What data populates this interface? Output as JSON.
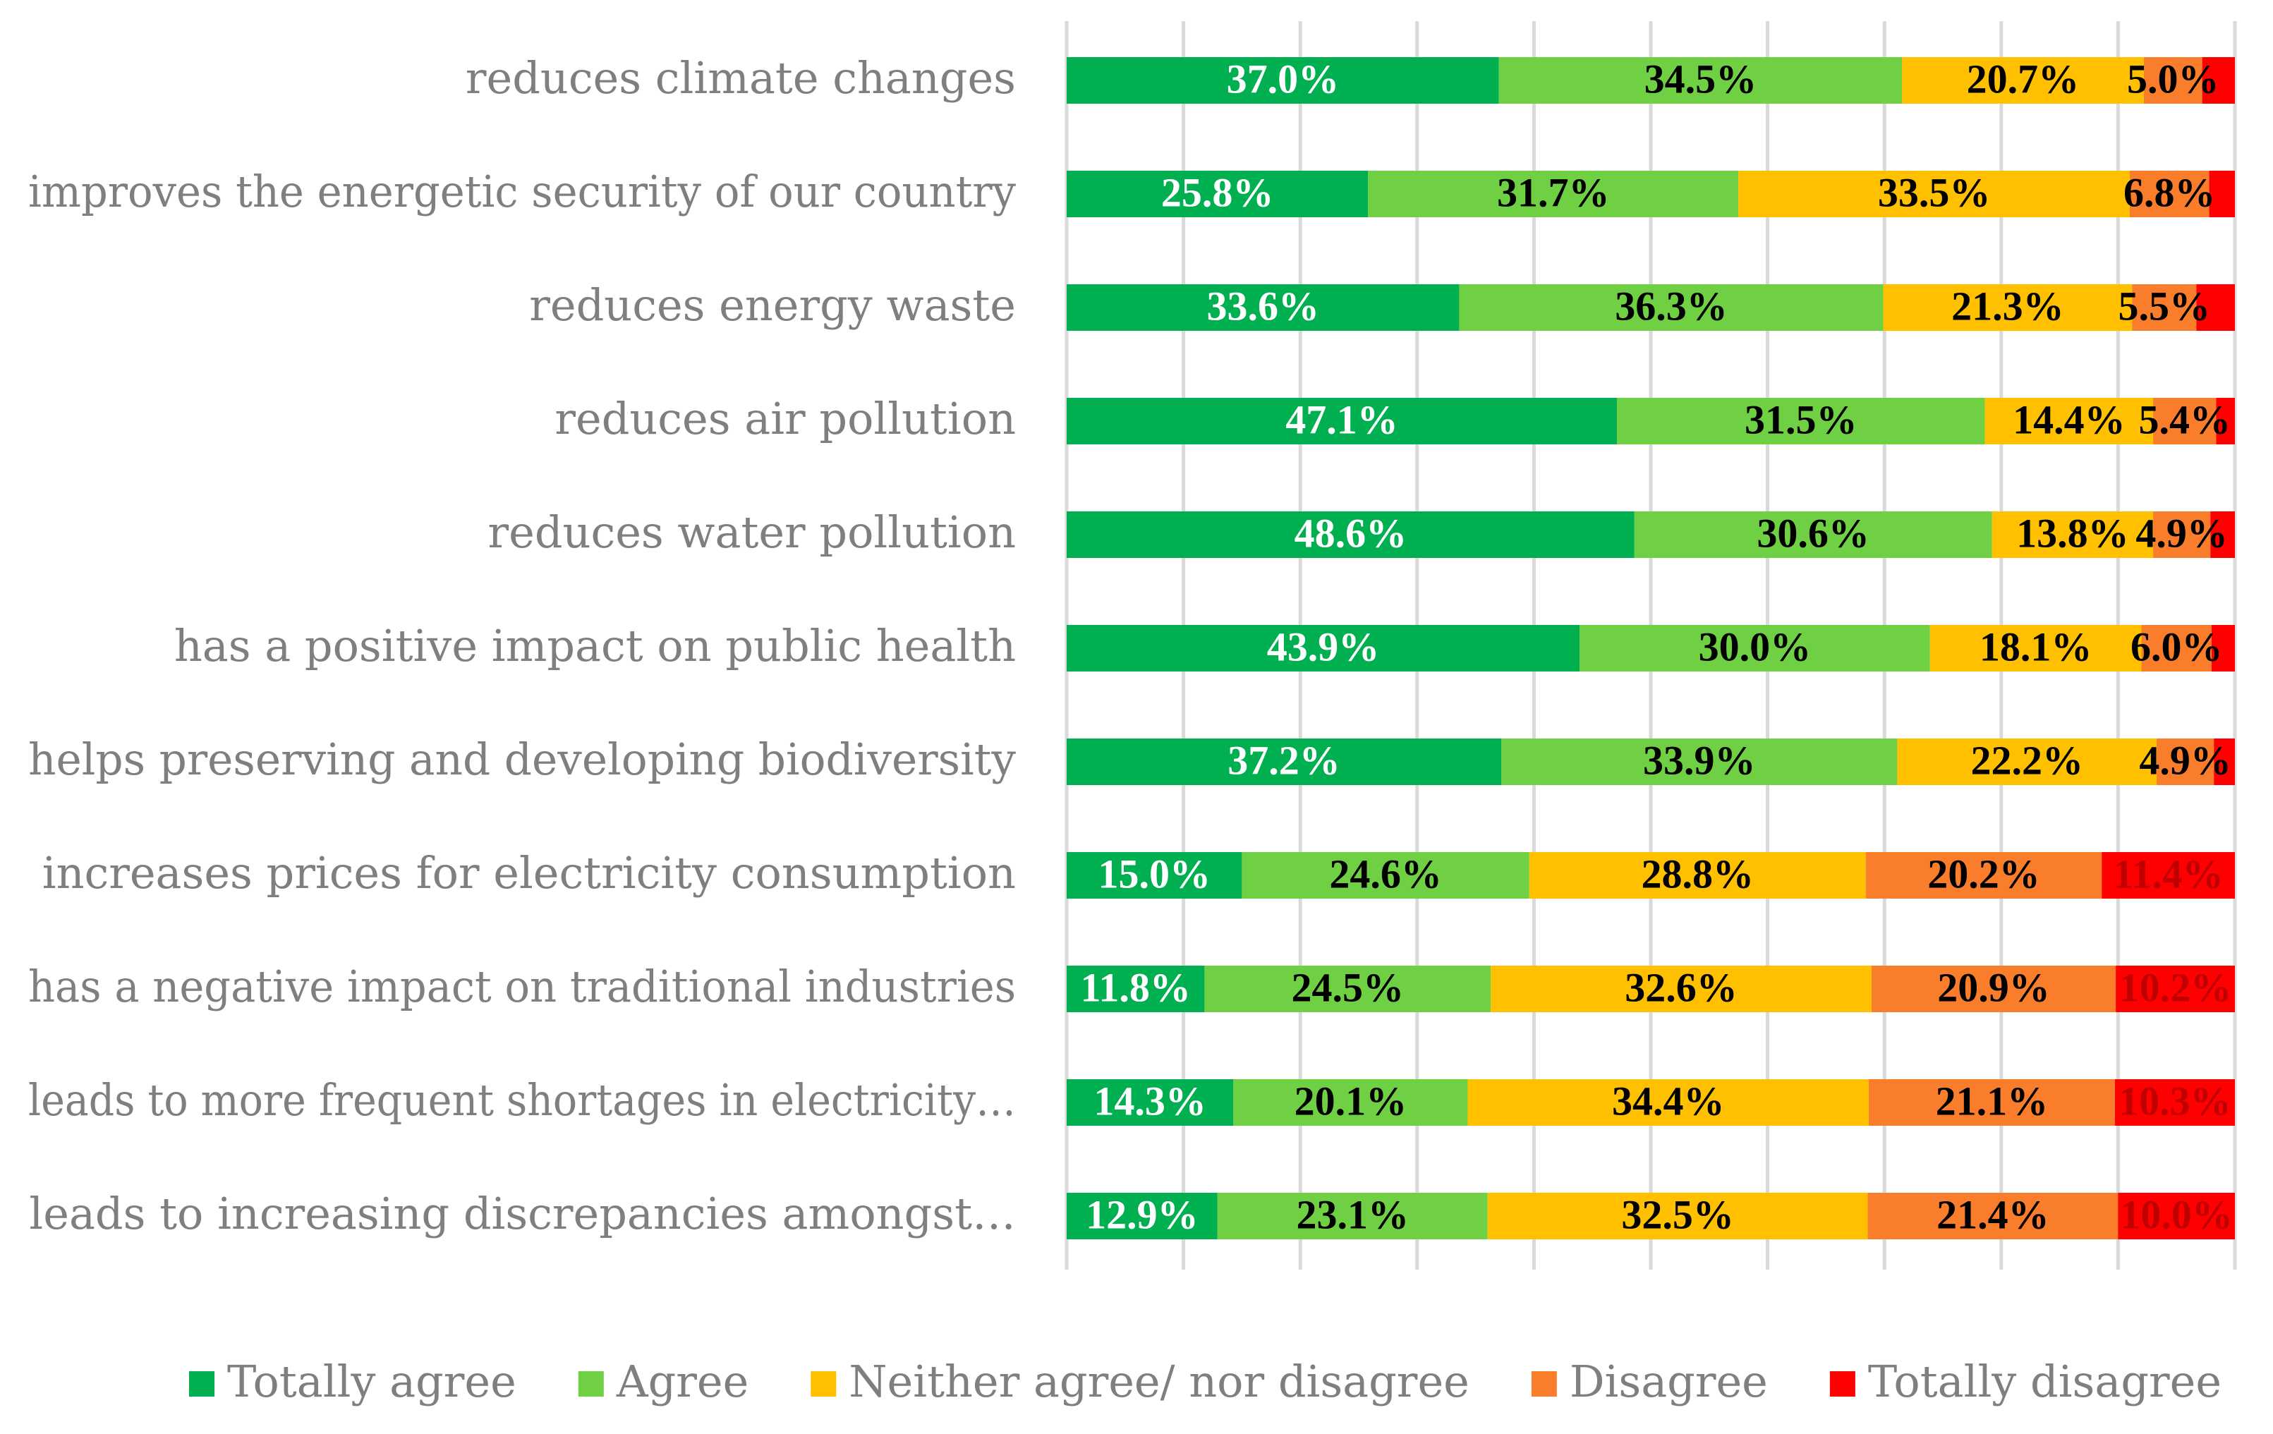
{
  "chart_data": {
    "type": "bar",
    "orientation": "horizontal",
    "stacked": "100%",
    "title": "",
    "xlabel": "",
    "ylabel": "",
    "xlim": [
      0,
      100
    ],
    "grid": true,
    "legend_position": "bottom",
    "categories": [
      "reduces climate changes",
      "improves the energetic security of our country",
      "reduces energy waste",
      "reduces air pollution",
      "reduces water pollution",
      "has a positive impact on public health",
      "helps preserving and developing biodiversity",
      "increases prices for electricity consumption",
      "has a negative impact on traditional industries",
      "leads to more frequent shortages in electricity…",
      "leads to increasing discrepancies amongst…"
    ],
    "series": [
      {
        "name": "Totally agree",
        "color": "#00b050",
        "label_color": "#ffffff",
        "values": [
          37.0,
          25.8,
          33.6,
          47.1,
          48.6,
          43.9,
          37.2,
          15.0,
          11.8,
          14.3,
          12.9
        ],
        "labels": [
          "37.0%",
          "25.8%",
          "33.6%",
          "47.1%",
          "48.6%",
          "43.9%",
          "37.2%",
          "15.0%",
          "11.8%",
          "14.3%",
          "12.9%"
        ]
      },
      {
        "name": "Agree",
        "color": "#70d043",
        "label_color": "#000000",
        "values": [
          34.5,
          31.7,
          36.3,
          31.5,
          30.6,
          30.0,
          33.9,
          24.6,
          24.5,
          20.1,
          23.1
        ],
        "labels": [
          "34.5%",
          "31.7%",
          "36.3%",
          "31.5%",
          "30.6%",
          "30.0%",
          "33.9%",
          "24.6%",
          "24.5%",
          "20.1%",
          "23.1%"
        ]
      },
      {
        "name": "Neither agree/ nor disagree",
        "color": "#ffc000",
        "label_color": "#000000",
        "values": [
          20.7,
          33.5,
          21.3,
          14.4,
          13.8,
          18.1,
          22.2,
          28.8,
          32.6,
          34.4,
          32.5
        ],
        "labels": [
          "20.7%",
          "33.5%",
          "21.3%",
          "14.4%",
          "13.8%",
          "18.1%",
          "22.2%",
          "28.8%",
          "32.6%",
          "34.4%",
          "32.5%"
        ]
      },
      {
        "name": "Disagree",
        "color": "#f97d2b",
        "label_color": "#000000",
        "values": [
          5.0,
          6.8,
          5.5,
          5.4,
          4.9,
          6.0,
          4.9,
          20.2,
          20.9,
          21.1,
          21.4
        ],
        "labels": [
          "5.0%",
          "6.8%",
          "5.5%",
          "5.4%",
          "4.9%",
          "6.0%",
          "4.9%",
          "20.2%",
          "20.9%",
          "21.1%",
          "21.4%"
        ]
      },
      {
        "name": "Totally disagree",
        "color": "#ff0000",
        "label_color": "#c00000",
        "values": [
          2.8,
          2.2,
          3.3,
          1.6,
          2.1,
          2.0,
          1.8,
          11.4,
          10.2,
          10.3,
          10.0
        ],
        "labels": [
          "",
          "",
          "",
          "",
          "",
          "",
          "",
          "11.4%",
          "10.2%",
          "10.3%",
          "10.0%"
        ]
      }
    ]
  }
}
